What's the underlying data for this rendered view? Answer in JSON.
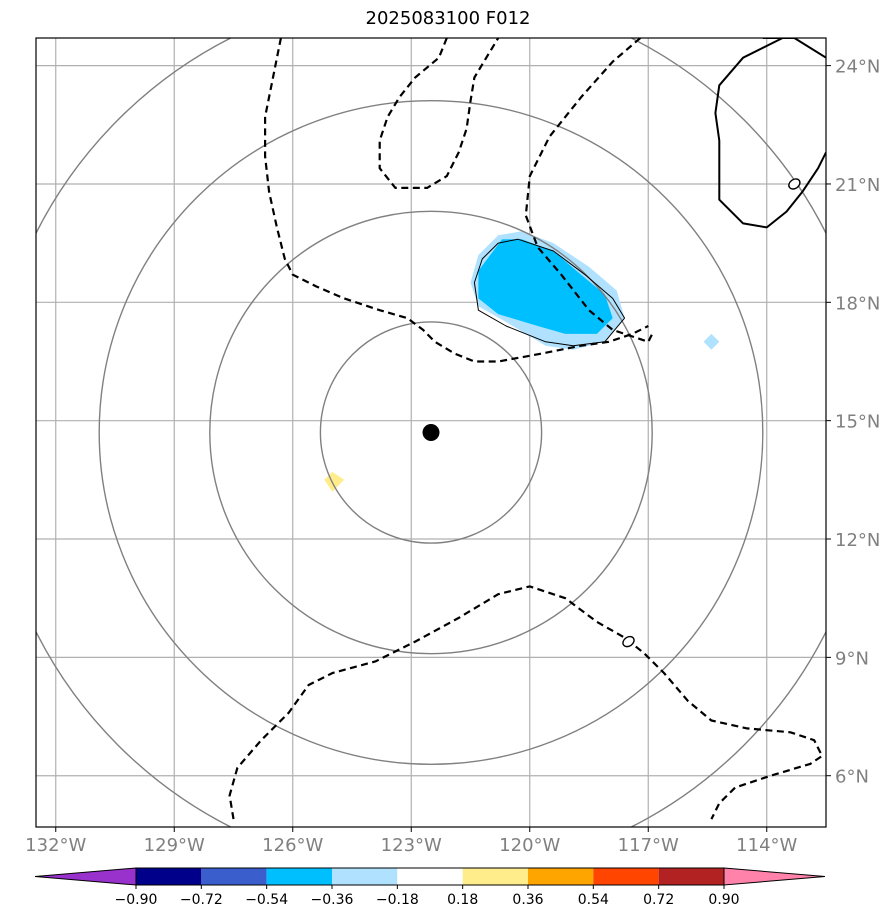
{
  "chart_data": {
    "type": "contour-map",
    "title": "2025083100 F012",
    "xlim": [
      -132.5,
      -112.5
    ],
    "ylim": [
      4.7,
      24.7
    ],
    "xticks": [
      -132,
      -129,
      -126,
      -123,
      -120,
      -117,
      -114
    ],
    "xtick_labels": [
      "132°W",
      "129°W",
      "126°W",
      "123°W",
      "120°W",
      "117°W",
      "114°W"
    ],
    "yticks": [
      6,
      9,
      12,
      15,
      18,
      21,
      24
    ],
    "ytick_labels": [
      "6°N",
      "9°N",
      "12°N",
      "15°N",
      "18°N",
      "21°N",
      "24°N"
    ],
    "grid": true,
    "center": {
      "lon": -122.5,
      "lat": 14.7
    },
    "range_rings_deg": [
      2.8,
      5.6,
      8.4,
      11.2
    ],
    "colorbar": {
      "levels": [
        "−0.90",
        "−0.72",
        "−0.54",
        "−0.36",
        "−0.18",
        "0.18",
        "0.36",
        "0.54",
        "0.72",
        "0.90"
      ],
      "colors": [
        "#9932cc",
        "#00008b",
        "#3a5fcd",
        "#00bfff",
        "#b0e2ff",
        "#ffffff",
        "#ffec8b",
        "#ffa500",
        "#ff4500",
        "#b22222",
        "#ff82ab"
      ],
      "extend": "both"
    },
    "contour_labels": [
      {
        "text": "0",
        "lon": -117.5,
        "lat": 9.4
      },
      {
        "text": "0",
        "lon": -113.3,
        "lat": 21.0
      }
    ],
    "filled_regions": [
      {
        "level": "-0.36 to -0.18",
        "color": "#b0e2ff",
        "points": [
          [
            -120.8,
            19.7
          ],
          [
            -120.2,
            19.8
          ],
          [
            -119.4,
            19.5
          ],
          [
            -118.5,
            18.9
          ],
          [
            -117.8,
            18.3
          ],
          [
            -117.6,
            17.6
          ],
          [
            -118.1,
            17.0
          ],
          [
            -118.9,
            16.8
          ],
          [
            -119.6,
            16.9
          ],
          [
            -120.6,
            17.5
          ],
          [
            -121.3,
            17.9
          ],
          [
            -121.5,
            18.5
          ],
          [
            -121.3,
            19.2
          ]
        ]
      },
      {
        "level": "-0.54 to -0.36",
        "color": "#00bfff",
        "points": [
          [
            -120.7,
            19.6
          ],
          [
            -120.2,
            19.6
          ],
          [
            -119.4,
            19.3
          ],
          [
            -118.7,
            18.7
          ],
          [
            -118.1,
            18.2
          ],
          [
            -117.9,
            17.6
          ],
          [
            -118.3,
            17.2
          ],
          [
            -119.1,
            17.2
          ],
          [
            -119.8,
            17.4
          ],
          [
            -120.8,
            17.7
          ],
          [
            -121.3,
            18.1
          ],
          [
            -121.3,
            18.8
          ]
        ]
      },
      {
        "level": "-0.36 to -0.18",
        "color": "#b0e2ff",
        "points": [
          [
            -115.4,
            17.2
          ],
          [
            -115.2,
            17.0
          ],
          [
            -115.4,
            16.8
          ],
          [
            -115.6,
            17.0
          ]
        ]
      },
      {
        "level": "0.18 to 0.36",
        "color": "#ffec8b",
        "points": [
          [
            -125.0,
            13.7
          ],
          [
            -124.7,
            13.5
          ],
          [
            -125.0,
            13.2
          ],
          [
            -125.2,
            13.5
          ]
        ]
      }
    ],
    "contours": [
      {
        "style": "solid",
        "points": [
          [
            -120.8,
            19.5
          ],
          [
            -120.3,
            19.6
          ],
          [
            -119.4,
            19.3
          ],
          [
            -118.6,
            18.7
          ],
          [
            -117.9,
            18.1
          ],
          [
            -117.6,
            17.6
          ],
          [
            -118.1,
            17.0
          ],
          [
            -118.9,
            16.9
          ],
          [
            -119.6,
            17.0
          ],
          [
            -120.6,
            17.4
          ],
          [
            -121.3,
            17.8
          ],
          [
            -121.4,
            18.5
          ],
          [
            -121.2,
            19.1
          ],
          [
            -120.8,
            19.5
          ]
        ]
      },
      {
        "style": "solid",
        "points": [
          [
            -113.6,
            24.7
          ],
          [
            -114.6,
            24.2
          ],
          [
            -115.2,
            23.5
          ],
          [
            -115.3,
            22.8
          ],
          [
            -115.2,
            22.1
          ],
          [
            -115.2,
            21.3
          ],
          [
            -115.2,
            20.6
          ],
          [
            -114.6,
            20.0
          ],
          [
            -114.0,
            19.9
          ],
          [
            -113.5,
            20.3
          ],
          [
            -113.1,
            20.8
          ],
          [
            -112.7,
            21.4
          ],
          [
            -112.5,
            21.8
          ]
        ]
      },
      {
        "style": "solid",
        "points": [
          [
            -114.1,
            24.7
          ],
          [
            -113.3,
            24.7
          ],
          [
            -112.5,
            24.2
          ]
        ]
      },
      {
        "style": "dashed",
        "points": [
          [
            -126.3,
            24.7
          ],
          [
            -126.5,
            23.7
          ],
          [
            -126.7,
            22.7
          ],
          [
            -126.7,
            21.7
          ],
          [
            -126.6,
            20.8
          ],
          [
            -126.4,
            19.9
          ],
          [
            -126.2,
            19.1
          ],
          [
            -126.0,
            18.7
          ],
          [
            -125.4,
            18.4
          ],
          [
            -124.7,
            18.1
          ],
          [
            -123.8,
            17.8
          ],
          [
            -123.1,
            17.6
          ],
          [
            -122.7,
            17.3
          ],
          [
            -122.4,
            17.0
          ],
          [
            -121.9,
            16.7
          ],
          [
            -121.4,
            16.5
          ],
          [
            -120.8,
            16.5
          ],
          [
            -119.7,
            16.7
          ],
          [
            -118.7,
            16.9
          ],
          [
            -118.0,
            17.0
          ],
          [
            -117.4,
            17.2
          ],
          [
            -117.0,
            17.4
          ]
        ]
      },
      {
        "style": "dashed",
        "points": [
          [
            -122.1,
            24.7
          ],
          [
            -122.3,
            24.2
          ],
          [
            -122.9,
            23.7
          ],
          [
            -123.3,
            23.2
          ],
          [
            -123.6,
            22.7
          ],
          [
            -123.8,
            22.1
          ],
          [
            -123.8,
            21.4
          ],
          [
            -123.4,
            20.9
          ],
          [
            -122.6,
            20.9
          ],
          [
            -122.1,
            21.2
          ],
          [
            -121.8,
            21.8
          ],
          [
            -121.6,
            22.4
          ],
          [
            -121.5,
            23.1
          ],
          [
            -121.4,
            23.7
          ],
          [
            -121.1,
            24.2
          ],
          [
            -120.8,
            24.7
          ]
        ]
      },
      {
        "style": "dashed",
        "points": [
          [
            -117.2,
            24.7
          ],
          [
            -117.9,
            24.1
          ],
          [
            -118.7,
            23.2
          ],
          [
            -119.5,
            22.2
          ],
          [
            -120.0,
            21.2
          ],
          [
            -120.1,
            20.2
          ],
          [
            -119.8,
            19.4
          ],
          [
            -119.2,
            18.7
          ],
          [
            -118.5,
            17.8
          ],
          [
            -117.9,
            17.3
          ],
          [
            -117.0,
            17.0
          ],
          [
            -116.9,
            17.2
          ]
        ]
      },
      {
        "style": "dashed",
        "points": [
          [
            -127.5,
            4.9
          ],
          [
            -127.6,
            5.5
          ],
          [
            -127.4,
            6.2
          ],
          [
            -126.8,
            6.9
          ],
          [
            -126.1,
            7.6
          ],
          [
            -125.6,
            8.3
          ],
          [
            -125.0,
            8.6
          ],
          [
            -123.9,
            8.9
          ],
          [
            -122.9,
            9.4
          ],
          [
            -121.8,
            10.0
          ],
          [
            -120.8,
            10.6
          ],
          [
            -120.0,
            10.8
          ],
          [
            -119.1,
            10.5
          ],
          [
            -118.3,
            9.9
          ],
          [
            -117.6,
            9.5
          ],
          [
            -117.1,
            9.1
          ],
          [
            -116.6,
            8.6
          ],
          [
            -116.0,
            7.9
          ],
          [
            -115.4,
            7.4
          ],
          [
            -114.5,
            7.2
          ],
          [
            -113.4,
            7.1
          ],
          [
            -112.8,
            6.9
          ],
          [
            -112.6,
            6.5
          ],
          [
            -112.9,
            6.3
          ],
          [
            -113.9,
            6.0
          ],
          [
            -114.8,
            5.7
          ],
          [
            -115.2,
            5.3
          ],
          [
            -115.4,
            4.9
          ]
        ]
      }
    ]
  }
}
